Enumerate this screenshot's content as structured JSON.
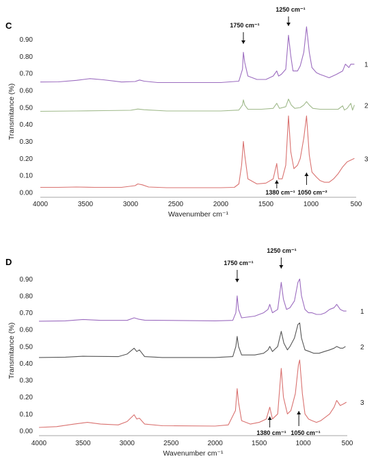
{
  "chart_data": [
    {
      "panel": "C",
      "type": "line",
      "xlabel": "Wavenumber cm⁻¹",
      "ylabel": "Transmitance (%)",
      "xlim": [
        4000,
        500
      ],
      "ylim": [
        0,
        0.95
      ],
      "x_ticks": [
        4000,
        3500,
        3000,
        2500,
        2000,
        1500,
        1000,
        500
      ],
      "y_ticks": [
        "0.00",
        "0.10",
        "0.20",
        "0.30",
        "0.40",
        "0.50",
        "0.60",
        "0.70",
        "0.80",
        "0.90"
      ],
      "grid": false,
      "annotations": [
        {
          "text": "1750 cm⁻¹",
          "x": 1750,
          "arrow": "down"
        },
        {
          "text": "1250 cm⁻¹",
          "x": 1250,
          "arrow": "down"
        },
        {
          "text": "1380 cm⁻¹",
          "x": 1380,
          "arrow": "up"
        },
        {
          "text": "1050 cm⁻²",
          "x": 1050,
          "arrow": "up"
        }
      ],
      "series": [
        {
          "name": "1",
          "color": "#9b6bbf",
          "points": [
            [
              4000,
              0.625
            ],
            [
              3800,
              0.626
            ],
            [
              3600,
              0.635
            ],
            [
              3450,
              0.645
            ],
            [
              3300,
              0.638
            ],
            [
              3100,
              0.625
            ],
            [
              2950,
              0.628
            ],
            [
              2900,
              0.637
            ],
            [
              2850,
              0.63
            ],
            [
              2700,
              0.622
            ],
            [
              2000,
              0.622
            ],
            [
              1800,
              0.63
            ],
            [
              1760,
              0.7
            ],
            [
              1750,
              0.8
            ],
            [
              1735,
              0.74
            ],
            [
              1700,
              0.66
            ],
            [
              1600,
              0.64
            ],
            [
              1500,
              0.64
            ],
            [
              1420,
              0.66
            ],
            [
              1380,
              0.69
            ],
            [
              1360,
              0.66
            ],
            [
              1330,
              0.67
            ],
            [
              1280,
              0.7
            ],
            [
              1250,
              0.9
            ],
            [
              1225,
              0.78
            ],
            [
              1200,
              0.69
            ],
            [
              1150,
              0.69
            ],
            [
              1120,
              0.72
            ],
            [
              1080,
              0.8
            ],
            [
              1050,
              0.95
            ],
            [
              1020,
              0.8
            ],
            [
              990,
              0.71
            ],
            [
              940,
              0.68
            ],
            [
              900,
              0.67
            ],
            [
              850,
              0.66
            ],
            [
              800,
              0.65
            ],
            [
              720,
              0.67
            ],
            [
              650,
              0.69
            ],
            [
              620,
              0.73
            ],
            [
              580,
              0.71
            ],
            [
              560,
              0.73
            ],
            [
              520,
              0.73
            ]
          ]
        },
        {
          "name": "2",
          "color": "#9fb98a",
          "points": [
            [
              4000,
              0.453
            ],
            [
              3600,
              0.455
            ],
            [
              3300,
              0.457
            ],
            [
              3000,
              0.459
            ],
            [
              2920,
              0.466
            ],
            [
              2850,
              0.462
            ],
            [
              2600,
              0.455
            ],
            [
              2000,
              0.455
            ],
            [
              1800,
              0.46
            ],
            [
              1760,
              0.49
            ],
            [
              1750,
              0.52
            ],
            [
              1735,
              0.49
            ],
            [
              1700,
              0.465
            ],
            [
              1550,
              0.465
            ],
            [
              1420,
              0.47
            ],
            [
              1380,
              0.5
            ],
            [
              1350,
              0.47
            ],
            [
              1280,
              0.48
            ],
            [
              1250,
              0.525
            ],
            [
              1220,
              0.49
            ],
            [
              1180,
              0.47
            ],
            [
              1120,
              0.475
            ],
            [
              1080,
              0.49
            ],
            [
              1050,
              0.51
            ],
            [
              1020,
              0.49
            ],
            [
              980,
              0.47
            ],
            [
              900,
              0.465
            ],
            [
              800,
              0.465
            ],
            [
              700,
              0.465
            ],
            [
              650,
              0.485
            ],
            [
              630,
              0.46
            ],
            [
              600,
              0.47
            ],
            [
              560,
              0.5
            ],
            [
              540,
              0.46
            ],
            [
              520,
              0.49
            ]
          ]
        },
        {
          "name": "3",
          "color": "#d9716f",
          "points": [
            [
              4000,
              0.01
            ],
            [
              3800,
              0.01
            ],
            [
              3600,
              0.012
            ],
            [
              3400,
              0.01
            ],
            [
              3100,
              0.01
            ],
            [
              2950,
              0.02
            ],
            [
              2920,
              0.03
            ],
            [
              2870,
              0.025
            ],
            [
              2800,
              0.012
            ],
            [
              2600,
              0.008
            ],
            [
              2000,
              0.008
            ],
            [
              1850,
              0.01
            ],
            [
              1800,
              0.03
            ],
            [
              1770,
              0.14
            ],
            [
              1750,
              0.28
            ],
            [
              1735,
              0.2
            ],
            [
              1700,
              0.06
            ],
            [
              1600,
              0.03
            ],
            [
              1500,
              0.035
            ],
            [
              1420,
              0.06
            ],
            [
              1380,
              0.15
            ],
            [
              1360,
              0.06
            ],
            [
              1320,
              0.06
            ],
            [
              1280,
              0.14
            ],
            [
              1250,
              0.43
            ],
            [
              1225,
              0.22
            ],
            [
              1190,
              0.12
            ],
            [
              1150,
              0.14
            ],
            [
              1120,
              0.18
            ],
            [
              1080,
              0.3
            ],
            [
              1050,
              0.43
            ],
            [
              1020,
              0.2
            ],
            [
              990,
              0.1
            ],
            [
              940,
              0.07
            ],
            [
              900,
              0.05
            ],
            [
              850,
              0.04
            ],
            [
              800,
              0.04
            ],
            [
              750,
              0.06
            ],
            [
              700,
              0.09
            ],
            [
              650,
              0.13
            ],
            [
              600,
              0.16
            ],
            [
              560,
              0.17
            ],
            [
              520,
              0.18
            ]
          ]
        }
      ]
    },
    {
      "panel": "D",
      "type": "line",
      "xlabel": "Wavenumber cm⁻¹",
      "ylabel": "Transmitance (%)",
      "xlim": [
        4000,
        500
      ],
      "ylim": [
        0,
        0.95
      ],
      "x_ticks": [
        4000,
        3500,
        3000,
        2500,
        2000,
        1500,
        1000,
        500
      ],
      "y_ticks": [
        "0.00",
        "0.10",
        "0.20",
        "0.30",
        "0.40",
        "0.50",
        "0.60",
        "0.70",
        "0.80",
        "0.90"
      ],
      "grid": false,
      "annotations": [
        {
          "text": "1750 cm⁻¹",
          "x": 1750,
          "arrow": "down"
        },
        {
          "text": "1250 cm⁻¹",
          "x": 1250,
          "arrow": "down"
        },
        {
          "text": "1380 cm⁻¹",
          "x": 1380,
          "arrow": "up"
        },
        {
          "text": "1050 cm⁻¹",
          "x": 1050,
          "arrow": "up"
        }
      ],
      "series": [
        {
          "name": "1",
          "color": "#9b6bbf",
          "points": [
            [
              4000,
              0.65
            ],
            [
              3700,
              0.652
            ],
            [
              3500,
              0.66
            ],
            [
              3300,
              0.655
            ],
            [
              3000,
              0.655
            ],
            [
              2920,
              0.67
            ],
            [
              2870,
              0.662
            ],
            [
              2800,
              0.656
            ],
            [
              2000,
              0.652
            ],
            [
              1800,
              0.655
            ],
            [
              1765,
              0.7
            ],
            [
              1750,
              0.8
            ],
            [
              1735,
              0.72
            ],
            [
              1700,
              0.67
            ],
            [
              1550,
              0.68
            ],
            [
              1450,
              0.7
            ],
            [
              1400,
              0.72
            ],
            [
              1380,
              0.75
            ],
            [
              1350,
              0.7
            ],
            [
              1290,
              0.72
            ],
            [
              1250,
              0.88
            ],
            [
              1225,
              0.78
            ],
            [
              1190,
              0.72
            ],
            [
              1150,
              0.73
            ],
            [
              1100,
              0.77
            ],
            [
              1060,
              0.88
            ],
            [
              1040,
              0.9
            ],
            [
              1020,
              0.8
            ],
            [
              980,
              0.72
            ],
            [
              940,
              0.7
            ],
            [
              900,
              0.7
            ],
            [
              850,
              0.69
            ],
            [
              800,
              0.69
            ],
            [
              750,
              0.7
            ],
            [
              700,
              0.72
            ],
            [
              650,
              0.73
            ],
            [
              620,
              0.75
            ],
            [
              580,
              0.72
            ],
            [
              540,
              0.71
            ],
            [
              510,
              0.71
            ]
          ]
        },
        {
          "name": "2",
          "color": "#555555",
          "points": [
            [
              4000,
              0.435
            ],
            [
              3700,
              0.437
            ],
            [
              3500,
              0.442
            ],
            [
              3100,
              0.44
            ],
            [
              3000,
              0.455
            ],
            [
              2920,
              0.49
            ],
            [
              2890,
              0.47
            ],
            [
              2860,
              0.48
            ],
            [
              2800,
              0.44
            ],
            [
              2600,
              0.435
            ],
            [
              2000,
              0.435
            ],
            [
              1800,
              0.44
            ],
            [
              1765,
              0.5
            ],
            [
              1750,
              0.56
            ],
            [
              1735,
              0.5
            ],
            [
              1700,
              0.45
            ],
            [
              1550,
              0.45
            ],
            [
              1450,
              0.46
            ],
            [
              1400,
              0.48
            ],
            [
              1380,
              0.5
            ],
            [
              1350,
              0.47
            ],
            [
              1290,
              0.5
            ],
            [
              1250,
              0.59
            ],
            [
              1220,
              0.52
            ],
            [
              1180,
              0.48
            ],
            [
              1150,
              0.5
            ],
            [
              1100,
              0.55
            ],
            [
              1060,
              0.63
            ],
            [
              1040,
              0.64
            ],
            [
              1020,
              0.55
            ],
            [
              980,
              0.48
            ],
            [
              930,
              0.47
            ],
            [
              880,
              0.46
            ],
            [
              820,
              0.46
            ],
            [
              760,
              0.47
            ],
            [
              700,
              0.48
            ],
            [
              650,
              0.49
            ],
            [
              620,
              0.5
            ],
            [
              580,
              0.49
            ],
            [
              550,
              0.49
            ],
            [
              520,
              0.5
            ]
          ]
        },
        {
          "name": "3",
          "color": "#d9716f",
          "points": [
            [
              4000,
              0.0
            ],
            [
              3800,
              0.005
            ],
            [
              3600,
              0.02
            ],
            [
              3450,
              0.03
            ],
            [
              3300,
              0.02
            ],
            [
              3100,
              0.015
            ],
            [
              3000,
              0.035
            ],
            [
              2920,
              0.075
            ],
            [
              2890,
              0.05
            ],
            [
              2860,
              0.055
            ],
            [
              2800,
              0.02
            ],
            [
              2600,
              0.01
            ],
            [
              2000,
              0.008
            ],
            [
              1850,
              0.015
            ],
            [
              1770,
              0.1
            ],
            [
              1750,
              0.23
            ],
            [
              1735,
              0.15
            ],
            [
              1700,
              0.04
            ],
            [
              1600,
              0.02
            ],
            [
              1500,
              0.03
            ],
            [
              1420,
              0.05
            ],
            [
              1380,
              0.12
            ],
            [
              1350,
              0.05
            ],
            [
              1290,
              0.08
            ],
            [
              1250,
              0.35
            ],
            [
              1225,
              0.18
            ],
            [
              1180,
              0.08
            ],
            [
              1140,
              0.1
            ],
            [
              1090,
              0.2
            ],
            [
              1055,
              0.37
            ],
            [
              1040,
              0.4
            ],
            [
              1010,
              0.2
            ],
            [
              980,
              0.08
            ],
            [
              940,
              0.05
            ],
            [
              900,
              0.04
            ],
            [
              850,
              0.03
            ],
            [
              800,
              0.04
            ],
            [
              750,
              0.06
            ],
            [
              700,
              0.08
            ],
            [
              650,
              0.12
            ],
            [
              620,
              0.16
            ],
            [
              580,
              0.13
            ],
            [
              540,
              0.14
            ],
            [
              510,
              0.15
            ]
          ]
        }
      ]
    }
  ]
}
